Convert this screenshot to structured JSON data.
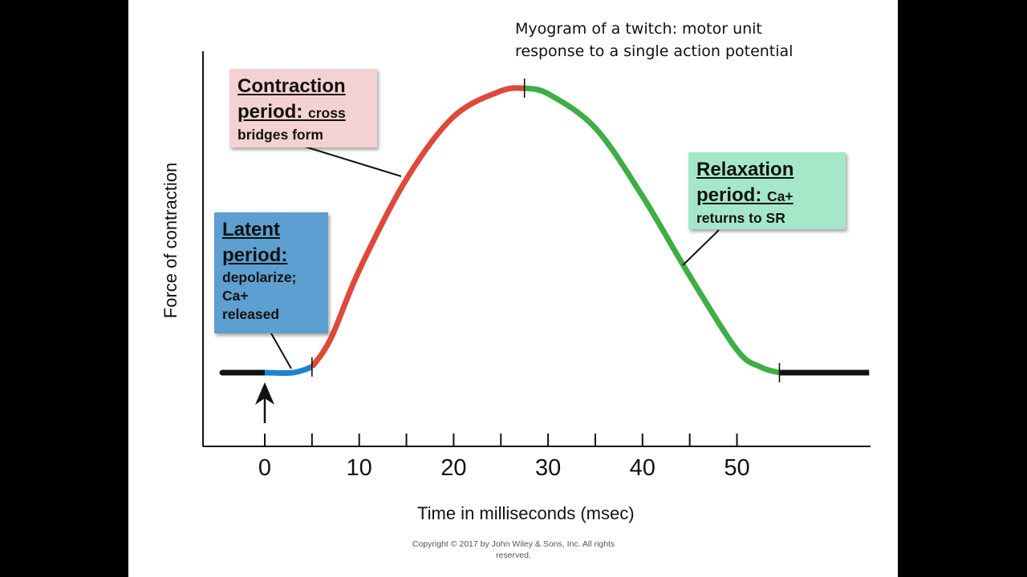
{
  "slide": {
    "title_line1": "Myogram of a twitch: motor unit",
    "title_line2": "response to a single action potential",
    "copyright_line1": "Copyright © 2017 by John Wiley & Sons, Inc. All rights",
    "copyright_line2": "reserved."
  },
  "colors": {
    "latent": "#1a84cc",
    "contraction": "#dd4a3a",
    "relaxation": "#3fae45",
    "baseline": "#111111",
    "latent_box": "#5d9fd0",
    "contraction_box": "#f5d2d2",
    "relaxation_box": "#a5e8c9"
  },
  "boxes": {
    "contraction": {
      "head": "Contraction",
      "head2": "period:",
      "inline": "cross",
      "body": "bridges form"
    },
    "latent": {
      "head": "Latent",
      "head2": "period:",
      "body1": "depolarize;",
      "body2": "Ca+",
      "body3": "released"
    },
    "relaxation": {
      "head": "Relaxation",
      "head2": "period:",
      "inline": "Ca+",
      "body": "returns to SR"
    }
  },
  "chart_data": {
    "type": "line",
    "title": "Myogram of a twitch: motor unit response to a single action potential",
    "xlabel": "Time in milliseconds (msec)",
    "ylabel": "Force of contraction",
    "xlim": [
      -5,
      65
    ],
    "ylim": [
      0,
      1
    ],
    "tick_labels": [
      "0",
      "10",
      "20",
      "30",
      "40",
      "50"
    ],
    "tick_values": [
      0,
      10,
      20,
      30,
      40,
      50
    ],
    "minor_ticks": [
      5,
      15,
      25,
      35,
      45
    ],
    "stimulus_time": 0,
    "stimulus_marker": "up-arrow",
    "phases": [
      {
        "name": "Latent period",
        "start": 0,
        "end": 5,
        "color": "#1a84cc"
      },
      {
        "name": "Contraction period",
        "start": 5,
        "end": 27.5,
        "color": "#dd4a3a"
      },
      {
        "name": "Relaxation period",
        "start": 27.5,
        "end": 54.5,
        "color": "#3fae45"
      }
    ],
    "series": [
      {
        "name": "Force",
        "x": [
          -4.5,
          0,
          3,
          5,
          7,
          10,
          15,
          20,
          25,
          27.5,
          30,
          35,
          40,
          45,
          50,
          52.5,
          54.5,
          64
        ],
        "y": [
          0.0,
          0.0,
          0.0,
          0.02,
          0.12,
          0.36,
          0.68,
          0.9,
          0.99,
          1.0,
          0.98,
          0.86,
          0.62,
          0.34,
          0.08,
          0.02,
          0.0,
          0.0
        ]
      }
    ],
    "grid": false
  }
}
